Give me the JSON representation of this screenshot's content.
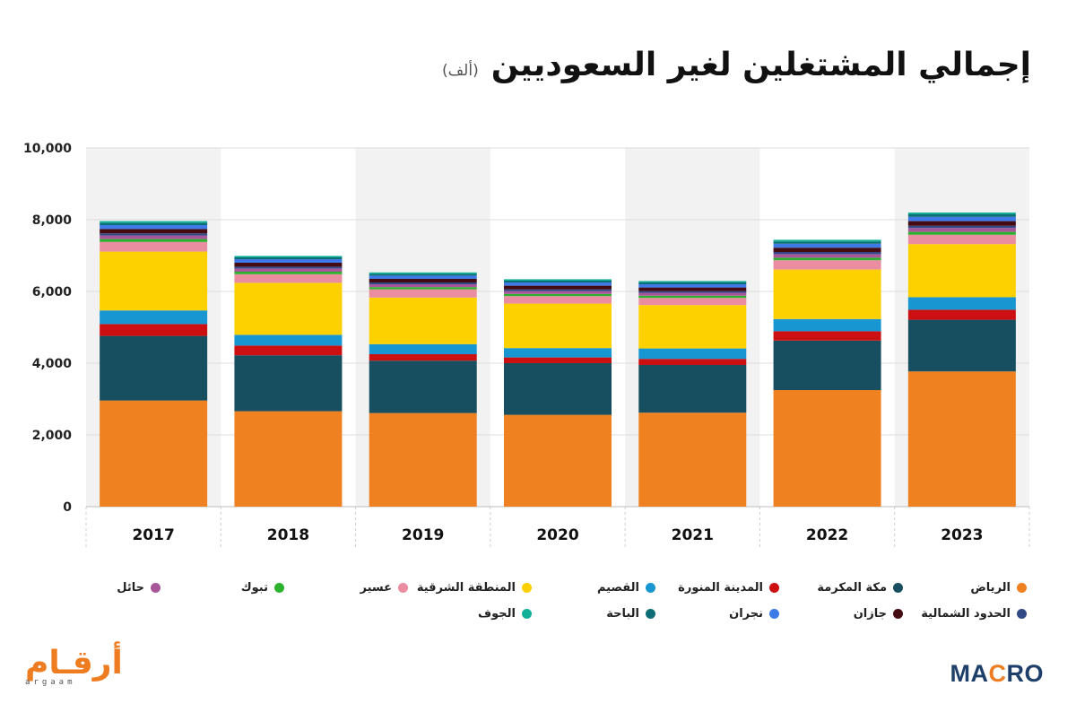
{
  "header": {
    "title": "إجمالي المشتغلين لغير السعوديين",
    "unit": "(ألف)"
  },
  "chart_data": {
    "type": "bar",
    "stacked": true,
    "categories": [
      "2017",
      "2018",
      "2019",
      "2020",
      "2021",
      "2022",
      "2023"
    ],
    "ylim": [
      0,
      10000
    ],
    "yticks": [
      "0",
      "2,000",
      "4,000",
      "6,000",
      "8,000",
      "10,000"
    ],
    "grid": true,
    "alternating_column_shading": true,
    "legend_position": "bottom",
    "series": [
      {
        "name": "الرياض",
        "color": "#f08121",
        "values": [
          2960,
          2660,
          2610,
          2560,
          2620,
          3250,
          3770
        ]
      },
      {
        "name": "مكة المكرمة",
        "color": "#174f61",
        "values": [
          1800,
          1560,
          1460,
          1440,
          1330,
          1380,
          1440
        ]
      },
      {
        "name": "المدينة المنورة",
        "color": "#cc0f10",
        "values": [
          330,
          270,
          180,
          160,
          170,
          260,
          280
        ]
      },
      {
        "name": "القصيم",
        "color": "#1796d1",
        "values": [
          380,
          300,
          280,
          260,
          290,
          340,
          350
        ]
      },
      {
        "name": "المنطقة الشرقية",
        "color": "#fdd100",
        "values": [
          1640,
          1450,
          1300,
          1240,
          1210,
          1380,
          1480
        ]
      },
      {
        "name": "عسير",
        "color": "#ea8da1",
        "values": [
          270,
          240,
          230,
          210,
          200,
          260,
          260
        ]
      },
      {
        "name": "تبوك",
        "color": "#2cb22c",
        "values": [
          80,
          70,
          60,
          60,
          60,
          70,
          80
        ]
      },
      {
        "name": "حائل",
        "color": "#a7569a",
        "values": [
          100,
          90,
          80,
          80,
          80,
          100,
          110
        ]
      },
      {
        "name": "الحدود الشمالية",
        "color": "#314985",
        "values": [
          60,
          50,
          50,
          50,
          50,
          60,
          60
        ]
      },
      {
        "name": "جازان",
        "color": "#450b13",
        "values": [
          120,
          110,
          100,
          100,
          100,
          120,
          130
        ]
      },
      {
        "name": "نجران",
        "color": "#3d7ae8",
        "values": [
          110,
          100,
          90,
          90,
          90,
          110,
          120
        ]
      },
      {
        "name": "الباحة",
        "color": "#0e6e75",
        "values": [
          60,
          50,
          50,
          50,
          50,
          60,
          70
        ]
      },
      {
        "name": "الجوف",
        "color": "#12b197",
        "values": [
          50,
          40,
          40,
          40,
          40,
          50,
          50
        ]
      }
    ]
  },
  "branding": {
    "left_logo_ar": "أرقـام",
    "left_logo_latin": "argaam",
    "right_logo_a": "MA",
    "right_logo_b": "C",
    "right_logo_c": "RO"
  }
}
